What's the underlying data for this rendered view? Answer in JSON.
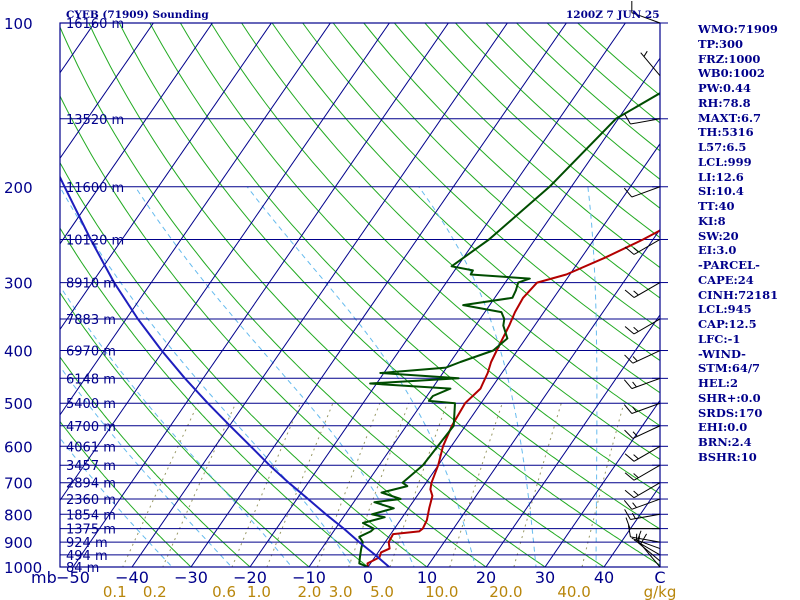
{
  "header": {
    "station": "CYEB (71909) Sounding",
    "time": "1200Z  7 JUN 25"
  },
  "indices": [
    "WMO:71909",
    "TP:300",
    "FRZ:1000",
    "WB0:1002",
    "PW:0.44",
    "RH:78.8",
    "MAXT:6.7",
    "TH:5316",
    "L57:6.5",
    "LCL:999",
    "LI:12.6",
    "SI:10.4",
    "TT:40",
    "KI:8",
    "SW:20",
    "EI:3.0",
    "-PARCEL-",
    "CAPE:24",
    "CINH:72181",
    "LCL:945",
    "CAP:12.5",
    "LFC:-1",
    "-WIND-",
    "STM:64/7",
    "HEL:2",
    "SHR+:0.0",
    "SRDS:170",
    "EHI:0.0",
    "BRN:2.4",
    "BSHR:10"
  ],
  "colors": {
    "frame": "#00008b",
    "temp": "#b30000",
    "dew": "#004d00",
    "parcel": "#1e1ebe",
    "dry_adiabat": "#22aa22",
    "moist_adiabat": "#66bbee",
    "mixing_ratio": "#999966",
    "wind": "#000000"
  },
  "chart_data": {
    "type": "skew-t log-p",
    "pressure_levels": [
      100,
      200,
      300,
      400,
      500,
      600,
      700,
      800,
      900,
      1000
    ],
    "pressure_unit": "mb",
    "height_labels": [
      {
        "p": 100,
        "label": "16160 m"
      },
      {
        "p": 150,
        "label": "13520 m"
      },
      {
        "p": 200,
        "label": "11600 m"
      },
      {
        "p": 250,
        "label": "10120 m"
      },
      {
        "p": 300,
        "label": "8910 m"
      },
      {
        "p": 350,
        "label": "7883 m"
      },
      {
        "p": 400,
        "label": "6970 m"
      },
      {
        "p": 450,
        "label": "6148 m"
      },
      {
        "p": 500,
        "label": "5400 m"
      },
      {
        "p": 550,
        "label": "4700 m"
      },
      {
        "p": 600,
        "label": "4061 m"
      },
      {
        "p": 650,
        "label": "3457 m"
      },
      {
        "p": 700,
        "label": "2894 m"
      },
      {
        "p": 750,
        "label": "2360 m"
      },
      {
        "p": 800,
        "label": "1854 m"
      },
      {
        "p": 850,
        "label": "1375 m"
      },
      {
        "p": 900,
        "label": "924 m"
      },
      {
        "p": 950,
        "label": "494 m"
      },
      {
        "p": 1000,
        "label": "84 m"
      }
    ],
    "temperature_ticks": [
      -50,
      -40,
      -30,
      -20,
      -10,
      0,
      10,
      20,
      30,
      40
    ],
    "temperature_tick_labels": [
      "−50",
      "−40",
      "−30",
      "−20",
      "−10",
      "0",
      "10",
      "20",
      "30",
      "40"
    ],
    "temperature_last_label": "C",
    "xlim": [
      -50,
      50
    ],
    "mixing_ratio_ticks": [
      0.1,
      0.2,
      0.6,
      1.0,
      2.0,
      3.0,
      5.0,
      10.0,
      20.0,
      40.0
    ],
    "mixing_ratio_tick_labels": [
      "0.1",
      "0.2",
      "0.6",
      "1.0",
      "2.0",
      "3.0",
      "5.0",
      "10.0",
      "20.0",
      "40.0"
    ],
    "mixing_ratio_unit": "g/kg",
    "series": [
      {
        "points": [
          [
            1000,
            0
          ],
          [
            985,
            -0.5
          ],
          [
            960,
            0.8
          ],
          [
            940,
            0.5
          ],
          [
            925,
            1.5
          ],
          [
            900,
            0.6
          ],
          [
            870,
            0.4
          ],
          [
            860,
            4.5
          ],
          [
            850,
            4.8
          ],
          [
            820,
            4.5
          ],
          [
            780,
            3.5
          ],
          [
            740,
            2.6
          ],
          [
            720,
            1.5
          ],
          [
            700,
            0.9
          ],
          [
            650,
            0
          ],
          [
            600,
            -1.4
          ],
          [
            550,
            -2.3
          ],
          [
            500,
            -2.7
          ],
          [
            470,
            -1.8
          ],
          [
            460,
            -2.0
          ],
          [
            440,
            -2.4
          ],
          [
            420,
            -3.1
          ],
          [
            400,
            -3.5
          ],
          [
            380,
            -3.9
          ],
          [
            360,
            -4.3
          ],
          [
            340,
            -4.9
          ],
          [
            320,
            -5.2
          ],
          [
            300,
            -4.6
          ],
          [
            290,
            -0.6
          ],
          [
            270,
            4
          ],
          [
            250,
            8.3
          ],
          [
            230,
            12.3
          ],
          [
            215,
            16.4
          ],
          [
            200,
            20.3
          ],
          [
            180,
            25
          ],
          [
            160,
            30.7
          ],
          [
            140,
            35.3
          ],
          [
            120,
            40.4
          ],
          [
            105,
            44.9
          ],
          [
            100,
            49
          ]
        ]
      },
      {
        "points": [
          [
            1000,
            0
          ],
          [
            985,
            -1.9
          ],
          [
            960,
            -2.5
          ],
          [
            925,
            -3.3
          ],
          [
            900,
            -3.8
          ],
          [
            880,
            -5
          ],
          [
            860,
            -3.7
          ],
          [
            850,
            -3.5
          ],
          [
            830,
            -6
          ],
          [
            810,
            -3
          ],
          [
            800,
            -5.5
          ],
          [
            780,
            -2.5
          ],
          [
            760,
            -6.5
          ],
          [
            750,
            -2.4
          ],
          [
            730,
            -6.4
          ],
          [
            710,
            -2.8
          ],
          [
            700,
            -4
          ],
          [
            650,
            -2.6
          ],
          [
            600,
            -2.3
          ],
          [
            550,
            -2.0
          ],
          [
            500,
            -4.4
          ],
          [
            495,
            -9.1
          ],
          [
            485,
            -9
          ],
          [
            470,
            -6.9
          ],
          [
            460,
            -21.1
          ],
          [
            450,
            -6.7
          ],
          [
            440,
            -20.6
          ],
          [
            430,
            -10.1
          ],
          [
            420,
            -8.3
          ],
          [
            400,
            -4.1
          ],
          [
            380,
            -3.1
          ],
          [
            360,
            -5.3
          ],
          [
            350,
            -5.9
          ],
          [
            340,
            -7.2
          ],
          [
            330,
            -14.5
          ],
          [
            320,
            -7
          ],
          [
            310,
            -7.3
          ],
          [
            300,
            -7.8
          ],
          [
            295,
            -6.3
          ],
          [
            290,
            -16.8
          ],
          [
            285,
            -16.9
          ],
          [
            280,
            -21
          ],
          [
            250,
            -17.8
          ],
          [
            200,
            -13.7
          ],
          [
            150,
            -10.4
          ],
          [
            120,
            -1.2
          ],
          [
            100,
            3.6
          ]
        ]
      },
      {
        "points": [
          [
            1000,
            3.6
          ],
          [
            950,
            -0.2
          ],
          [
            900,
            -4.4
          ],
          [
            850,
            -8.6
          ],
          [
            800,
            -13.3
          ],
          [
            750,
            -18.1
          ],
          [
            700,
            -23.3
          ],
          [
            650,
            -28.6
          ],
          [
            600,
            -34
          ],
          [
            550,
            -39.9
          ],
          [
            500,
            -46.3
          ],
          [
            450,
            -53.1
          ],
          [
            400,
            -60.3
          ],
          [
            350,
            -68
          ],
          [
            300,
            -76.3
          ],
          [
            250,
            -85.3
          ],
          [
            200,
            -95.9
          ],
          [
            150,
            -109.4
          ],
          [
            120,
            -119.4
          ],
          [
            100,
            -126.6
          ]
        ]
      }
    ],
    "wind_barbs": [
      {
        "p": 1000,
        "dir": 320,
        "spd": 10
      },
      {
        "p": 975,
        "dir": 310,
        "spd": 10
      },
      {
        "p": 950,
        "dir": 300,
        "spd": 5
      },
      {
        "p": 925,
        "dir": 290,
        "spd": 5
      },
      {
        "p": 900,
        "dir": 280,
        "spd": 10
      },
      {
        "p": 850,
        "dir": 270,
        "spd": 10
      },
      {
        "p": 800,
        "dir": 260,
        "spd": 15
      },
      {
        "p": 750,
        "dir": 250,
        "spd": 15
      },
      {
        "p": 700,
        "dir": 240,
        "spd": 15
      },
      {
        "p": 650,
        "dir": 240,
        "spd": 15
      },
      {
        "p": 600,
        "dir": 240,
        "spd": 15
      },
      {
        "p": 550,
        "dir": 245,
        "spd": 15
      },
      {
        "p": 500,
        "dir": 250,
        "spd": 15
      },
      {
        "p": 450,
        "dir": 250,
        "spd": 15
      },
      {
        "p": 400,
        "dir": 245,
        "spd": 15
      },
      {
        "p": 350,
        "dir": 240,
        "spd": 15
      },
      {
        "p": 300,
        "dir": 240,
        "spd": 15
      },
      {
        "p": 250,
        "dir": 240,
        "spd": 15
      },
      {
        "p": 200,
        "dir": 250,
        "spd": 10
      },
      {
        "p": 150,
        "dir": 260,
        "spd": 10
      },
      {
        "p": 125,
        "dir": 320,
        "spd": 5
      },
      {
        "p": 100,
        "dir": 290,
        "spd": 10
      }
    ]
  }
}
